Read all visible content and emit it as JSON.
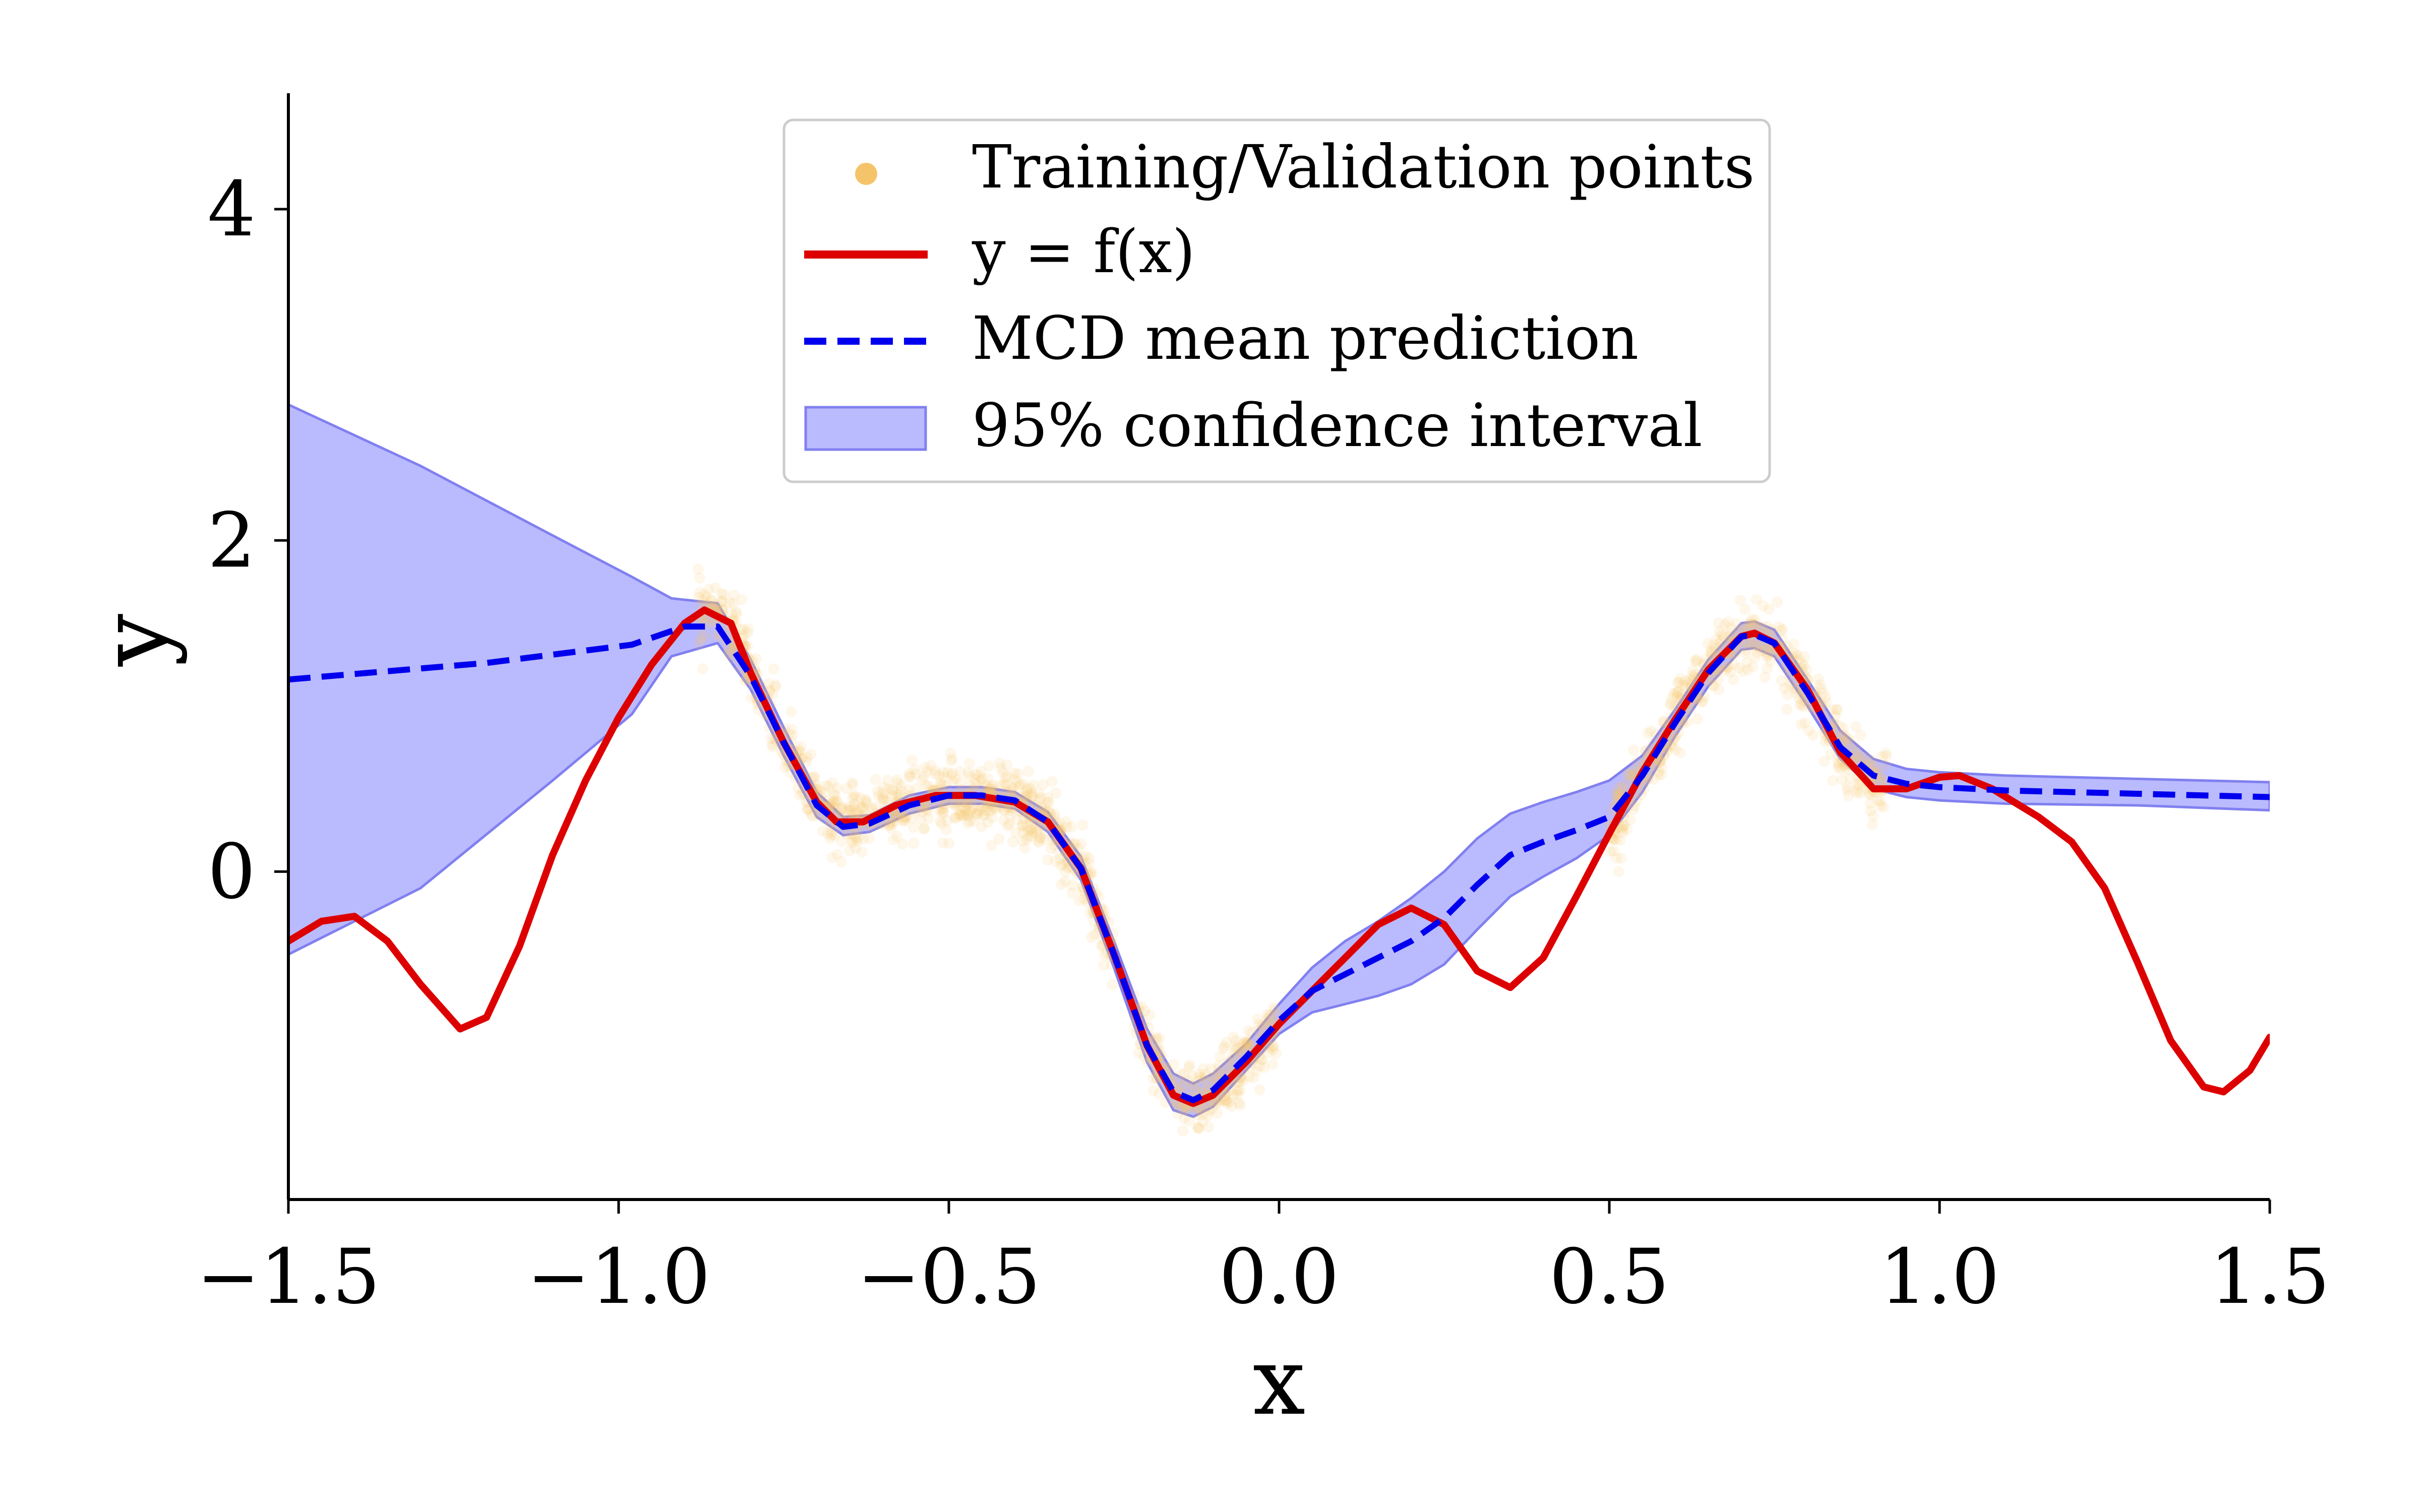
{
  "chart_data": {
    "type": "line",
    "xlabel": "x",
    "ylabel": "y",
    "xlim": [
      -1.5,
      1.5
    ],
    "ylim": [
      -1.98,
      4.7
    ],
    "xticks": [
      -1.5,
      -1.0,
      -0.5,
      0.0,
      0.5,
      1.0,
      1.5
    ],
    "xtick_labels": [
      "−1.5",
      "−1.0",
      "−0.5",
      "0.0",
      "0.5",
      "1.0",
      "1.5"
    ],
    "yticks": [
      0,
      2,
      4
    ],
    "ytick_labels": [
      "0",
      "2",
      "4"
    ],
    "grid": false,
    "legend_position": "top-center",
    "colors": {
      "true_function": "#dd0000",
      "mean_prediction": "#0000ee",
      "confidence_fill": "#babaff",
      "confidence_edge": "#8080f0",
      "points": "#f5c46a"
    },
    "series": [
      {
        "name": "Training/Validation points",
        "kind": "scatter",
        "x_ranges": [
          [
            -0.88,
            -0.25
          ],
          [
            -0.22,
            0.0
          ],
          [
            0.5,
            0.92
          ]
        ],
        "noise_sd": 0.1
      },
      {
        "name": "y = f(x)",
        "kind": "line",
        "points": [
          [
            -1.5,
            -0.42
          ],
          [
            -1.45,
            -0.3
          ],
          [
            -1.4,
            -0.27
          ],
          [
            -1.35,
            -0.42
          ],
          [
            -1.3,
            -0.68
          ],
          [
            -1.24,
            -0.95
          ],
          [
            -1.2,
            -0.88
          ],
          [
            -1.15,
            -0.45
          ],
          [
            -1.1,
            0.1
          ],
          [
            -1.05,
            0.55
          ],
          [
            -1.0,
            0.93
          ],
          [
            -0.95,
            1.25
          ],
          [
            -0.9,
            1.5
          ],
          [
            -0.87,
            1.58
          ],
          [
            -0.83,
            1.5
          ],
          [
            -0.8,
            1.2
          ],
          [
            -0.75,
            0.78
          ],
          [
            -0.7,
            0.42
          ],
          [
            -0.67,
            0.3
          ],
          [
            -0.63,
            0.3
          ],
          [
            -0.58,
            0.4
          ],
          [
            -0.52,
            0.46
          ],
          [
            -0.46,
            0.46
          ],
          [
            -0.4,
            0.42
          ],
          [
            -0.35,
            0.3
          ],
          [
            -0.3,
            0.02
          ],
          [
            -0.25,
            -0.5
          ],
          [
            -0.2,
            -1.05
          ],
          [
            -0.16,
            -1.35
          ],
          [
            -0.13,
            -1.4
          ],
          [
            -0.1,
            -1.35
          ],
          [
            -0.05,
            -1.15
          ],
          [
            0.0,
            -0.92
          ],
          [
            0.05,
            -0.72
          ],
          [
            0.1,
            -0.52
          ],
          [
            0.15,
            -0.32
          ],
          [
            0.2,
            -0.22
          ],
          [
            0.25,
            -0.32
          ],
          [
            0.3,
            -0.6
          ],
          [
            0.35,
            -0.7
          ],
          [
            0.4,
            -0.52
          ],
          [
            0.45,
            -0.15
          ],
          [
            0.5,
            0.23
          ],
          [
            0.55,
            0.6
          ],
          [
            0.6,
            0.92
          ],
          [
            0.65,
            1.22
          ],
          [
            0.7,
            1.42
          ],
          [
            0.72,
            1.44
          ],
          [
            0.75,
            1.38
          ],
          [
            0.8,
            1.1
          ],
          [
            0.85,
            0.72
          ],
          [
            0.9,
            0.5
          ],
          [
            0.95,
            0.5
          ],
          [
            1.0,
            0.57
          ],
          [
            1.03,
            0.58
          ],
          [
            1.08,
            0.5
          ],
          [
            1.15,
            0.33
          ],
          [
            1.2,
            0.18
          ],
          [
            1.25,
            -0.1
          ],
          [
            1.3,
            -0.55
          ],
          [
            1.35,
            -1.02
          ],
          [
            1.4,
            -1.3
          ],
          [
            1.43,
            -1.33
          ],
          [
            1.47,
            -1.2
          ],
          [
            1.5,
            -1.0
          ]
        ]
      },
      {
        "name": "MCD mean prediction",
        "kind": "line",
        "points": [
          [
            -1.5,
            1.16
          ],
          [
            -1.2,
            1.26
          ],
          [
            -0.98,
            1.37
          ],
          [
            -0.9,
            1.48
          ],
          [
            -0.85,
            1.48
          ],
          [
            -0.8,
            1.18
          ],
          [
            -0.75,
            0.78
          ],
          [
            -0.7,
            0.4
          ],
          [
            -0.66,
            0.27
          ],
          [
            -0.62,
            0.29
          ],
          [
            -0.56,
            0.4
          ],
          [
            -0.5,
            0.46
          ],
          [
            -0.45,
            0.46
          ],
          [
            -0.4,
            0.43
          ],
          [
            -0.35,
            0.3
          ],
          [
            -0.3,
            0.02
          ],
          [
            -0.25,
            -0.5
          ],
          [
            -0.2,
            -1.05
          ],
          [
            -0.16,
            -1.33
          ],
          [
            -0.13,
            -1.38
          ],
          [
            -0.1,
            -1.32
          ],
          [
            -0.05,
            -1.12
          ],
          [
            0.0,
            -0.9
          ],
          [
            0.05,
            -0.72
          ],
          [
            0.1,
            -0.62
          ],
          [
            0.15,
            -0.52
          ],
          [
            0.2,
            -0.42
          ],
          [
            0.25,
            -0.28
          ],
          [
            0.3,
            -0.08
          ],
          [
            0.35,
            0.1
          ],
          [
            0.4,
            0.18
          ],
          [
            0.45,
            0.25
          ],
          [
            0.5,
            0.33
          ],
          [
            0.55,
            0.58
          ],
          [
            0.6,
            0.9
          ],
          [
            0.65,
            1.2
          ],
          [
            0.7,
            1.42
          ],
          [
            0.72,
            1.43
          ],
          [
            0.75,
            1.38
          ],
          [
            0.8,
            1.08
          ],
          [
            0.85,
            0.75
          ],
          [
            0.9,
            0.58
          ],
          [
            0.95,
            0.53
          ],
          [
            1.0,
            0.51
          ],
          [
            1.1,
            0.49
          ],
          [
            1.3,
            0.47
          ],
          [
            1.5,
            0.45
          ]
        ]
      },
      {
        "name": "95% confidence interval",
        "kind": "band",
        "points": [
          [
            -1.5,
            -0.5,
            2.82
          ],
          [
            -1.3,
            -0.1,
            2.45
          ],
          [
            -1.1,
            0.55,
            2.03
          ],
          [
            -0.98,
            0.95,
            1.78
          ],
          [
            -0.92,
            1.3,
            1.65
          ],
          [
            -0.85,
            1.38,
            1.62
          ],
          [
            -0.8,
            1.1,
            1.28
          ],
          [
            -0.75,
            0.7,
            0.87
          ],
          [
            -0.7,
            0.33,
            0.48
          ],
          [
            -0.66,
            0.22,
            0.33
          ],
          [
            -0.62,
            0.24,
            0.34
          ],
          [
            -0.56,
            0.35,
            0.46
          ],
          [
            -0.5,
            0.41,
            0.51
          ],
          [
            -0.45,
            0.41,
            0.51
          ],
          [
            -0.4,
            0.38,
            0.48
          ],
          [
            -0.35,
            0.24,
            0.36
          ],
          [
            -0.3,
            -0.05,
            0.09
          ],
          [
            -0.25,
            -0.58,
            -0.42
          ],
          [
            -0.2,
            -1.15,
            -0.95
          ],
          [
            -0.16,
            -1.44,
            -1.22
          ],
          [
            -0.13,
            -1.48,
            -1.28
          ],
          [
            -0.1,
            -1.42,
            -1.22
          ],
          [
            -0.05,
            -1.2,
            -1.04
          ],
          [
            0.0,
            -0.98,
            -0.8
          ],
          [
            0.05,
            -0.85,
            -0.58
          ],
          [
            0.1,
            -0.8,
            -0.42
          ],
          [
            0.15,
            -0.75,
            -0.3
          ],
          [
            0.2,
            -0.68,
            -0.16
          ],
          [
            0.25,
            -0.56,
            0.0
          ],
          [
            0.3,
            -0.35,
            0.2
          ],
          [
            0.35,
            -0.15,
            0.35
          ],
          [
            0.4,
            -0.03,
            0.42
          ],
          [
            0.45,
            0.08,
            0.48
          ],
          [
            0.5,
            0.22,
            0.55
          ],
          [
            0.55,
            0.48,
            0.7
          ],
          [
            0.6,
            0.82,
            0.98
          ],
          [
            0.65,
            1.12,
            1.28
          ],
          [
            0.7,
            1.34,
            1.5
          ],
          [
            0.72,
            1.35,
            1.51
          ],
          [
            0.75,
            1.3,
            1.46
          ],
          [
            0.8,
            1.0,
            1.16
          ],
          [
            0.85,
            0.68,
            0.85
          ],
          [
            0.9,
            0.5,
            0.68
          ],
          [
            0.95,
            0.45,
            0.62
          ],
          [
            1.0,
            0.43,
            0.6
          ],
          [
            1.1,
            0.41,
            0.58
          ],
          [
            1.3,
            0.4,
            0.56
          ],
          [
            1.5,
            0.37,
            0.54
          ]
        ]
      }
    ]
  }
}
